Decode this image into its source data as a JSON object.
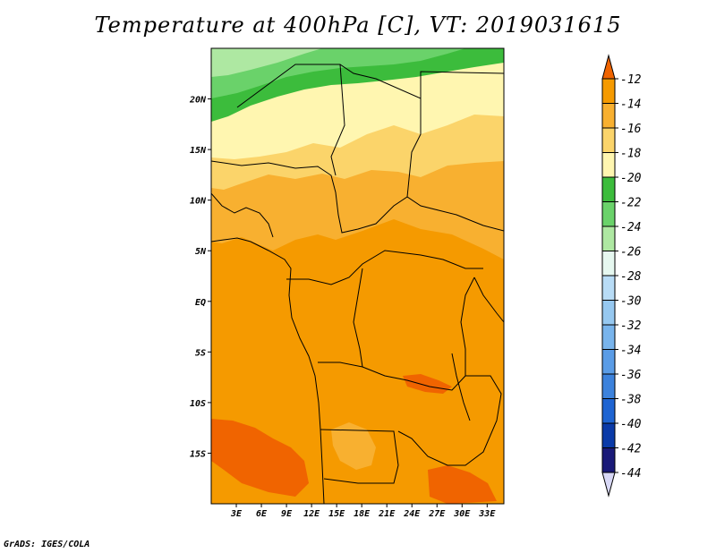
{
  "chart_data": {
    "type": "heatmap",
    "title": "Temperature at 400hPa [C], VT: 2019031615",
    "xlabel": "",
    "ylabel": "",
    "x_ticks": [
      "3E",
      "6E",
      "9E",
      "12E",
      "15E",
      "18E",
      "21E",
      "24E",
      "27E",
      "30E",
      "33E"
    ],
    "x_tick_values": [
      3,
      6,
      9,
      12,
      15,
      18,
      21,
      24,
      27,
      30,
      33
    ],
    "y_ticks": [
      "20N",
      "15N",
      "10N",
      "5N",
      "EQ",
      "5S",
      "10S",
      "15S"
    ],
    "y_tick_values": [
      20,
      15,
      10,
      5,
      0,
      -5,
      -10,
      -15
    ],
    "xlim": [
      0,
      35
    ],
    "ylim": [
      -20,
      25
    ],
    "colorbar": {
      "labels": [
        "-12",
        "-14",
        "-16",
        "-18",
        "-20",
        "-22",
        "-24",
        "-26",
        "-28",
        "-30",
        "-32",
        "-34",
        "-36",
        "-38",
        "-40",
        "-42",
        "-44"
      ],
      "colors": [
        "#f06400",
        "#f59a00",
        "#f8b030",
        "#fbd46a",
        "#fff6b0",
        "#3cbc3c",
        "#6ad26a",
        "#aee8a2",
        "#e6f8f0",
        "#b8dcf6",
        "#96c8f0",
        "#78b4ec",
        "#5a9ce6",
        "#3c82dc",
        "#1e64d2",
        "#0a3aa8",
        "#1a1a78"
      ],
      "over_color": "#f06400",
      "under_color": "#d8d8f6"
    },
    "credit": "GrADS: IGES/COLA"
  }
}
